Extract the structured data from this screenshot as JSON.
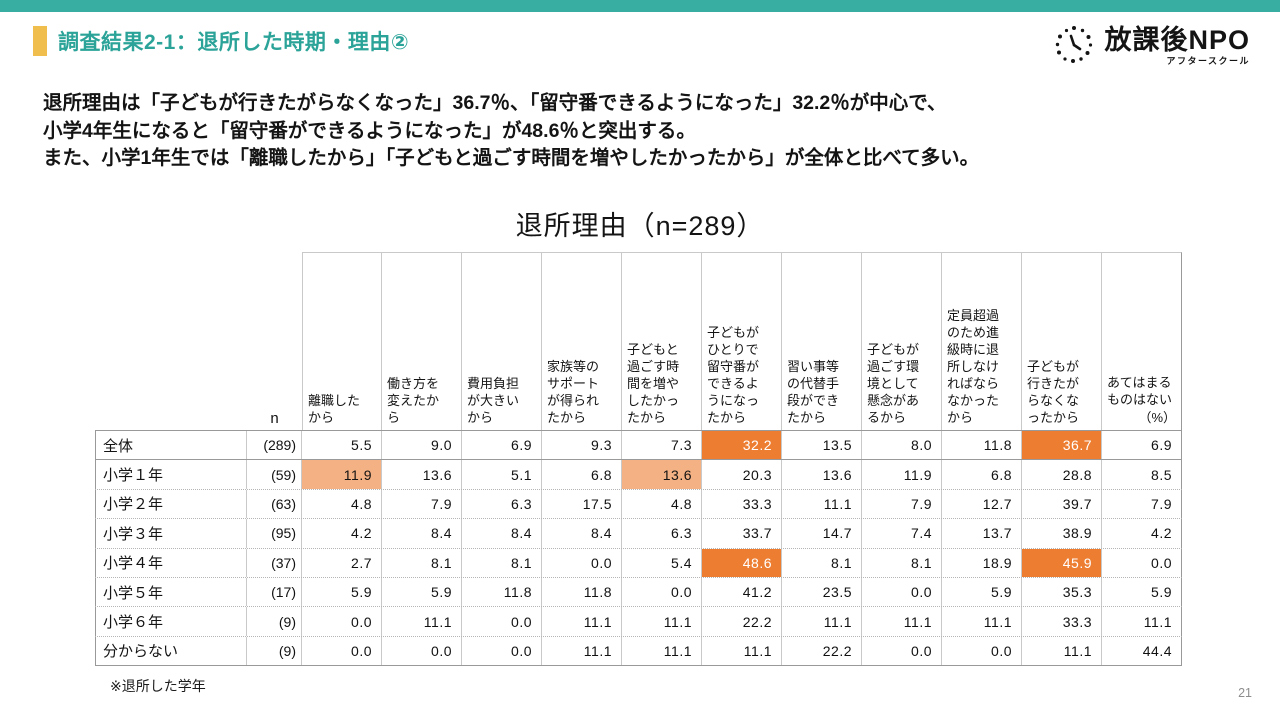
{
  "slide": {
    "title": "調査結果2-1：退所した時期・理由②",
    "footnote": "※退所した学年",
    "page_number": "21"
  },
  "logo": {
    "main": "放課後NPO",
    "sub": "アフタースクール",
    "icon": "clock-icon"
  },
  "summary": {
    "line1": "退所理由は「子どもが行きたがらなくなった」36.7％、「留守番できるようになった」32.2％が中心で、",
    "line2": "小学4年生になると「留守番ができるようになった」が48.6％と突出する。",
    "line3": "また、小学1年生では「離職したから」「子どもと過ごす時間を増やしたかったから」が全体と比べて多い。"
  },
  "chart_data": {
    "type": "table",
    "title": "退所理由（n=289）",
    "n_header": "n",
    "unit": "（%）",
    "columns": [
      "離職したから",
      "働き方を変えたから",
      "費用負担が大きいから",
      "家族等のサポートが得られたから",
      "子どもと過ごす時間を増やしたかったから",
      "子どもがひとりで留守番ができるようになったから",
      "習い事等の代替手段ができたから",
      "子どもが過ごす環境として懸念があるから",
      "定員超過のため進級時に退所しなければならなかったから",
      "子どもが行きたがらなくなったから",
      "あてはまるものはない"
    ],
    "rows": [
      {
        "label": "全体",
        "n": "(289)",
        "values": [
          "5.5",
          "9.0",
          "6.9",
          "9.3",
          "7.3",
          "32.2",
          "13.5",
          "8.0",
          "11.8",
          "36.7",
          "6.9"
        ]
      },
      {
        "label": "小学１年",
        "n": "(59)",
        "values": [
          "11.9",
          "13.6",
          "5.1",
          "6.8",
          "13.6",
          "20.3",
          "13.6",
          "11.9",
          "6.8",
          "28.8",
          "8.5"
        ]
      },
      {
        "label": "小学２年",
        "n": "(63)",
        "values": [
          "4.8",
          "7.9",
          "6.3",
          "17.5",
          "4.8",
          "33.3",
          "11.1",
          "7.9",
          "12.7",
          "39.7",
          "7.9"
        ]
      },
      {
        "label": "小学３年",
        "n": "(95)",
        "values": [
          "4.2",
          "8.4",
          "8.4",
          "8.4",
          "6.3",
          "33.7",
          "14.7",
          "7.4",
          "13.7",
          "38.9",
          "4.2"
        ]
      },
      {
        "label": "小学４年",
        "n": "(37)",
        "values": [
          "2.7",
          "8.1",
          "8.1",
          "0.0",
          "5.4",
          "48.6",
          "8.1",
          "8.1",
          "18.9",
          "45.9",
          "0.0"
        ]
      },
      {
        "label": "小学５年",
        "n": "(17)",
        "values": [
          "5.9",
          "5.9",
          "11.8",
          "11.8",
          "0.0",
          "41.2",
          "23.5",
          "0.0",
          "5.9",
          "35.3",
          "5.9"
        ]
      },
      {
        "label": "小学６年",
        "n": "(9)",
        "values": [
          "0.0",
          "11.1",
          "0.0",
          "11.1",
          "11.1",
          "22.2",
          "11.1",
          "11.1",
          "11.1",
          "33.3",
          "11.1"
        ]
      },
      {
        "label": "分からない",
        "n": "(9)",
        "values": [
          "0.0",
          "0.0",
          "0.0",
          "11.1",
          "11.1",
          "11.1",
          "22.2",
          "0.0",
          "0.0",
          "11.1",
          "44.4"
        ]
      }
    ],
    "highlights": [
      {
        "row": 0,
        "col": 5,
        "style": "dark"
      },
      {
        "row": 0,
        "col": 9,
        "style": "dark"
      },
      {
        "row": 1,
        "col": 0,
        "style": "light"
      },
      {
        "row": 1,
        "col": 4,
        "style": "light"
      },
      {
        "row": 4,
        "col": 5,
        "style": "dark"
      },
      {
        "row": 4,
        "col": 9,
        "style": "dark"
      }
    ],
    "colors": {
      "highlight_dark": "#ED7D31",
      "highlight_light": "#F4B183",
      "accent_teal": "#38ADA1",
      "accent_yellow": "#EFBE4D",
      "title_teal": "#2BA398"
    }
  }
}
